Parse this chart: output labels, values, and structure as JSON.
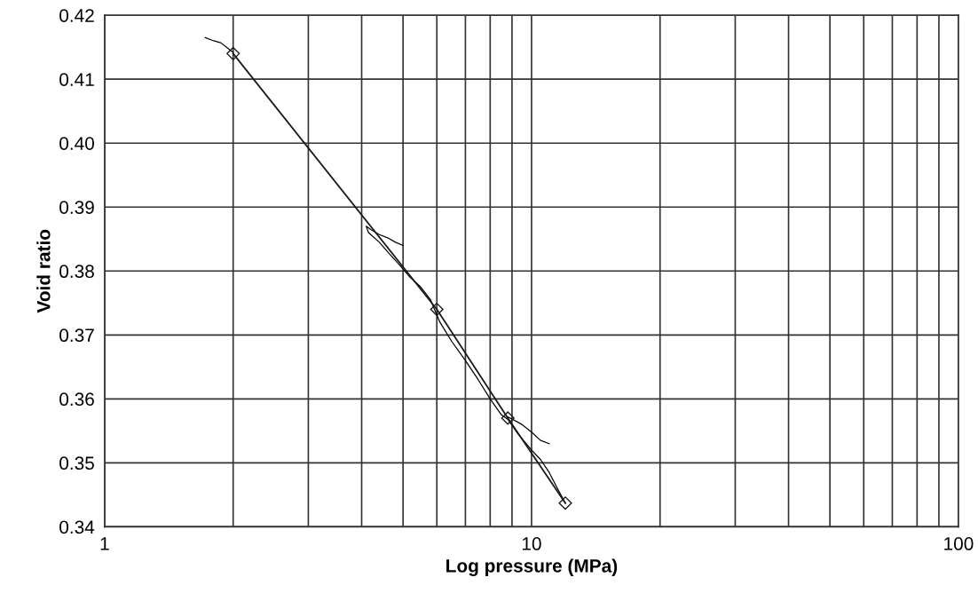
{
  "chart_data": {
    "type": "line",
    "xlabel": "Log pressure (MPa)",
    "ylabel": "Void ratio",
    "log": "x",
    "grid": true,
    "xlim": [
      1,
      100
    ],
    "ylim": [
      0.34,
      0.42
    ],
    "xticks": [
      1,
      {
        "value": 2,
        "label": null
      },
      {
        "value": 3,
        "label": null
      },
      {
        "value": 4,
        "label": null
      },
      {
        "value": 5,
        "label": null
      },
      {
        "value": 6,
        "label": null
      },
      {
        "value": 7,
        "label": null
      },
      {
        "value": 8,
        "label": null
      },
      {
        "value": 9,
        "label": null
      },
      10,
      {
        "value": 20,
        "label": null
      },
      {
        "value": 30,
        "label": null
      },
      {
        "value": 40,
        "label": null
      },
      {
        "value": 50,
        "label": null
      },
      {
        "value": 60,
        "label": null
      },
      {
        "value": 70,
        "label": null
      },
      {
        "value": 80,
        "label": null
      },
      {
        "value": 90,
        "label": null
      },
      100
    ],
    "yticks": [
      {
        "value": 0.34,
        "label": "0.34"
      },
      {
        "value": 0.35,
        "label": "0.35"
      },
      {
        "value": 0.36,
        "label": "0.36"
      },
      {
        "value": 0.37,
        "label": "0.37"
      },
      {
        "value": 0.38,
        "label": "0.38"
      },
      {
        "value": 0.39,
        "label": "0.39"
      },
      {
        "value": 0.4,
        "label": "0.40"
      },
      {
        "value": 0.41,
        "label": "0.41"
      },
      {
        "value": 0.42,
        "label": "0.42"
      }
    ],
    "series": [
      {
        "color": "#000000",
        "marker": "none",
        "x": [
          1.72,
          1.8,
          1.87,
          1.93,
          2.0,
          null,
          5.0,
          4.8,
          4.6,
          4.4,
          4.2,
          4.1,
          4.15,
          4.4,
          4.6,
          4.9,
          5.2,
          5.5,
          5.8,
          6.1,
          6.5,
          7.0,
          7.5,
          8.0,
          8.5,
          8.8,
          null,
          8.8,
          9.5,
          10.0,
          10.5,
          11.0,
          null,
          8.8,
          9.3,
          10.0,
          10.5,
          11.0,
          11.5,
          12.0
        ],
        "values": [
          0.4165,
          0.416,
          0.4157,
          0.415,
          0.4142,
          null,
          0.384,
          0.3845,
          0.3852,
          0.3857,
          0.3865,
          0.387,
          0.386,
          0.3845,
          0.383,
          0.381,
          0.379,
          0.3775,
          0.3755,
          0.372,
          0.369,
          0.366,
          0.363,
          0.36,
          0.3575,
          0.3568,
          null,
          0.3572,
          0.356,
          0.3548,
          0.3535,
          0.353,
          null,
          0.3568,
          0.3545,
          0.352,
          0.3505,
          0.3485,
          0.346,
          0.3437
        ]
      },
      {
        "color": "#1a1a1a",
        "marker": "diamond",
        "x": [
          2,
          6,
          8.8,
          12
        ],
        "values": [
          0.414,
          0.374,
          0.357,
          0.3437
        ]
      }
    ]
  }
}
